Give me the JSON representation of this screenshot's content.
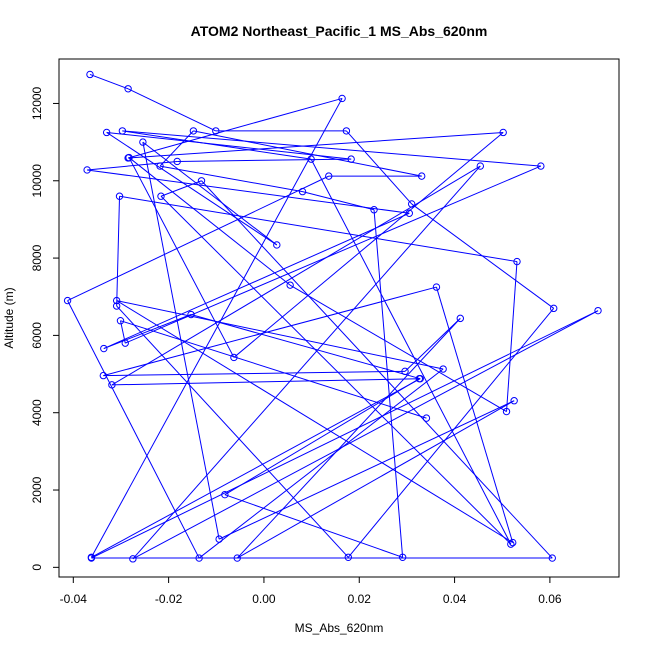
{
  "chart_data": {
    "type": "line",
    "title": "ATOM2 Northeast_Pacific_1 MS_Abs_620nm",
    "xlabel": "MS_Abs_620nm",
    "ylabel": "Altitude (m)",
    "xlim": [
      -0.043,
      0.0745
    ],
    "ylim": [
      -250,
      13150
    ],
    "x_ticks": [
      -0.04,
      -0.02,
      0.0,
      0.02,
      0.04,
      0.06
    ],
    "x_tick_labels": [
      "-0.04",
      "-0.02",
      "0.00",
      "0.02",
      "0.04",
      "0.06"
    ],
    "y_ticks": [
      0,
      2000,
      4000,
      6000,
      8000,
      10000,
      12000
    ],
    "y_tick_labels": [
      "0",
      "2000",
      "4000",
      "6000",
      "8000",
      "10000",
      "12000"
    ],
    "series": [
      {
        "color": "#0000ff",
        "marker": "open-circle",
        "x": [
          -0.0365,
          -0.0285,
          -0.0101,
          0.0173,
          0.031,
          0.0608,
          0.0177,
          -0.0309,
          -0.0303,
          0.0531,
          0.0509,
          0.0055,
          -0.0283,
          -0.0063,
          0.0502,
          -0.0285,
          0.0164,
          -0.0362,
          0.0328,
          -0.0153,
          -0.0336,
          0.0305,
          -0.0371,
          -0.0182,
          0.0183,
          -0.033,
          0.0027,
          -0.0254,
          -0.0094,
          0.0525,
          -0.0056,
          0.0412,
          0.0296,
          -0.0337,
          0.0362,
          0.0522,
          -0.0309,
          0.0376,
          -0.0136,
          -0.0412,
          0.0136,
          0.0331,
          -0.0148,
          -0.0218,
          0.0081,
          0.0231,
          0.0291,
          -0.0082,
          0.0326,
          -0.0319,
          0.0454,
          -0.0275,
          0.0701,
          -0.0362,
          0.0605,
          -0.0131,
          -0.0216,
          0.0518,
          0.0099,
          -0.0297,
          0.0581,
          -0.0291,
          -0.0301,
          0.0341
        ],
        "y": [
          12750,
          12380,
          11290,
          11290,
          9400,
          6700,
          260,
          6760,
          9600,
          7910,
          4030,
          7300,
          10600,
          5430,
          11250,
          10590,
          12130,
          260,
          4880,
          6540,
          5660,
          9160,
          10280,
          10500,
          10560,
          11250,
          8340,
          11000,
          730,
          4310,
          240,
          6440,
          5070,
          4960,
          7250,
          640,
          6900,
          5130,
          240,
          6900,
          10120,
          10120,
          11290,
          10380,
          9720,
          9250,
          260,
          1880,
          4880,
          4720,
          10380,
          220,
          6640,
          240,
          240,
          10000,
          9600,
          600,
          10560,
          11290,
          10380,
          5800,
          6380,
          3860
        ]
      }
    ]
  }
}
